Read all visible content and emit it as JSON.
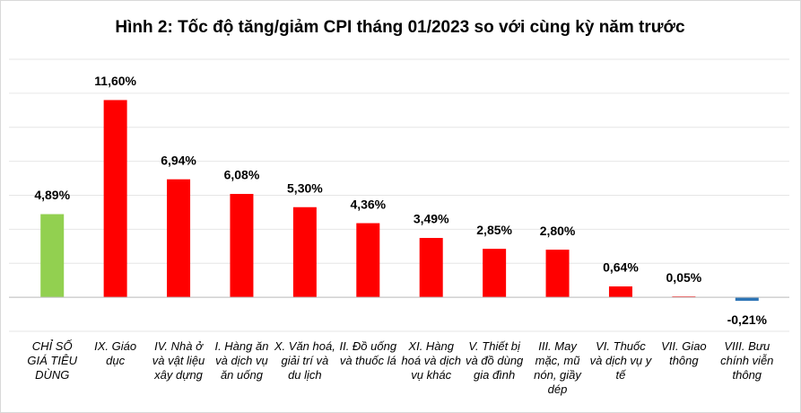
{
  "chart_data": {
    "type": "bar",
    "title": "Hình 2: Tốc độ tăng/giảm CPI tháng 01/2023 so với cùng kỳ năm trước",
    "categories": [
      "CHỈ SỐ GIÁ TIÊU DÙNG",
      "IX. Giáo dục",
      "IV. Nhà ở và vật liệu xây dựng",
      "I. Hàng ăn và dịch vụ ăn uống",
      "X. Văn hoá, giải trí và du lịch",
      "II. Đồ uống và thuốc lá",
      "XI. Hàng hoá và dịch vụ khác",
      "V. Thiết bị và đồ dùng gia đình",
      "III. May mặc, mũ nón, giầy dép",
      "VI. Thuốc và dịch vụ y tế",
      "VII. Giao thông",
      "VIII. Bưu chính viễn thông"
    ],
    "values": [
      4.89,
      11.6,
      6.94,
      6.08,
      5.3,
      4.36,
      3.49,
      2.85,
      2.8,
      0.64,
      0.05,
      -0.21
    ],
    "value_labels": [
      "4,89%",
      "11,60%",
      "6,94%",
      "6,08%",
      "5,30%",
      "4,36%",
      "3,49%",
      "2,85%",
      "2,80%",
      "0,64%",
      "0,05%",
      "-0,21%"
    ],
    "colors": [
      "#92d050",
      "#ff0000",
      "#ff0000",
      "#ff0000",
      "#ff0000",
      "#ff0000",
      "#ff0000",
      "#ff0000",
      "#ff0000",
      "#ff0000",
      "#ff0000",
      "#2e75b6"
    ],
    "ylim": [
      -2,
      14
    ],
    "yticks": [
      -2,
      0,
      2,
      4,
      6,
      8,
      10,
      12,
      14
    ],
    "grid": true
  }
}
